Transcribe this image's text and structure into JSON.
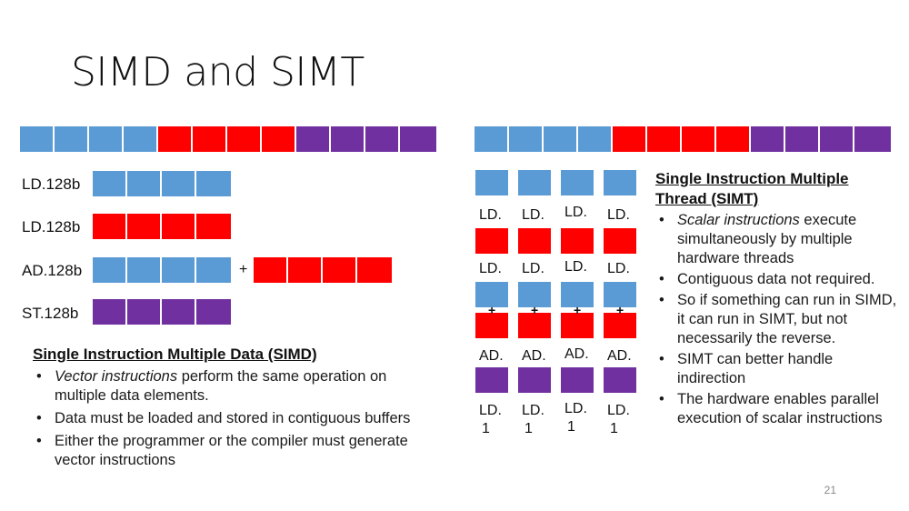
{
  "slide": {
    "title": "SIMD and SIMT",
    "page_number": "21"
  },
  "simd": {
    "rows": [
      "LD.128b",
      "LD.128b",
      "AD.128b",
      "ST.128b"
    ],
    "plus": "+",
    "heading": "Single Instruction Multiple Data (SIMD)",
    "bullets": [
      {
        "italic": "Vector instructions",
        "rest": " perform the same operation on multiple data elements."
      },
      {
        "italic": "",
        "rest": "Data must be loaded and stored in contiguous buffers"
      },
      {
        "italic": "",
        "rest": "Either the programmer or the compiler must generate vector instructions"
      }
    ]
  },
  "simt": {
    "ld_label": "LD.",
    "ad_label": "AD.",
    "plus": "+",
    "st_label_line1": "LD.",
    "st_label_line2": "1",
    "heading_line1": "Single Instruction Multiple",
    "heading_line2": "Thread (SIMT)",
    "bullets": [
      {
        "italic": "Scalar instructions",
        "rest": " execute simultaneously by multiple hardware threads"
      },
      {
        "italic": "",
        "rest": "Contiguous data not required."
      },
      {
        "italic": "",
        "rest": "So if something can run in SIMD, it can run in SIMT, but not necessarily the reverse."
      },
      {
        "italic": "",
        "rest": "SIMT can better handle indirection"
      },
      {
        "italic": "",
        "rest": "The hardware enables parallel execution of scalar instructions"
      }
    ]
  },
  "colors": {
    "blue": "#5b9bd5",
    "red": "#ff0000",
    "purple": "#7030a0"
  }
}
